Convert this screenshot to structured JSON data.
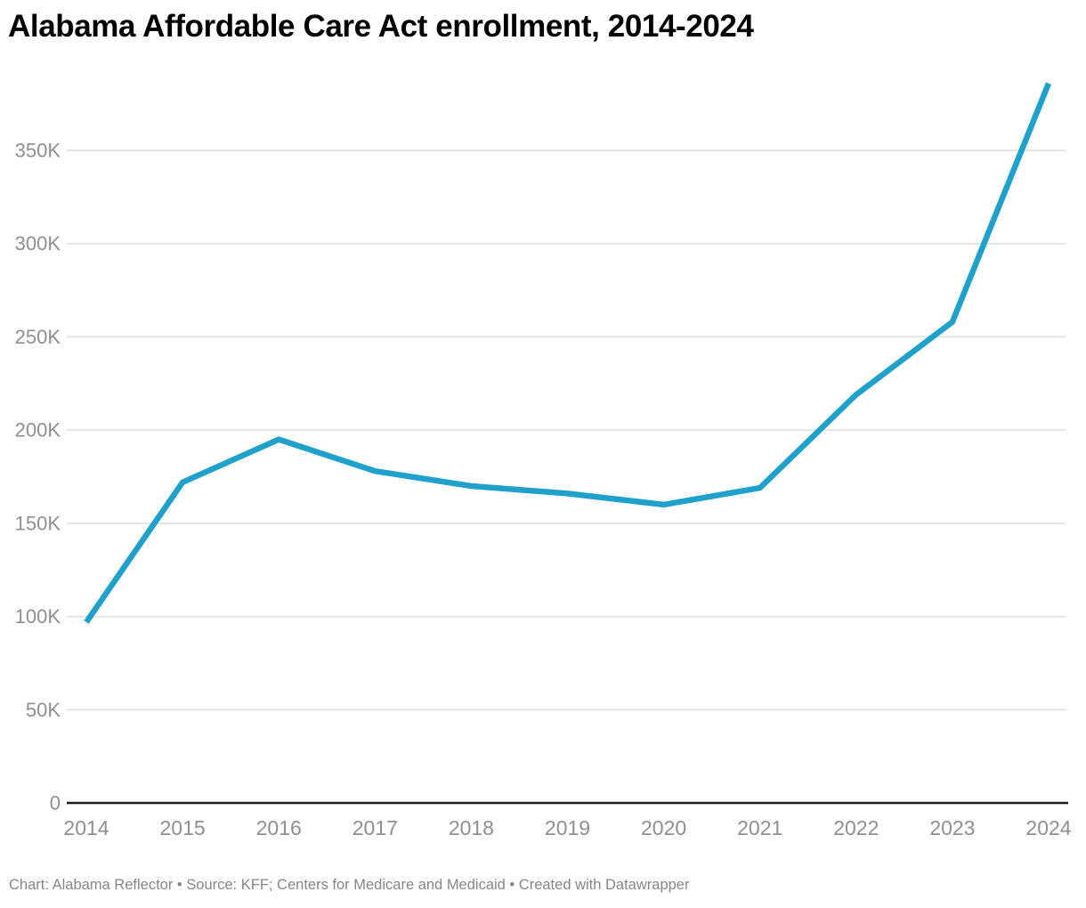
{
  "header": {
    "title": "Alabama Affordable Care Act enrollment, 2014-2024"
  },
  "footer": {
    "text": "Chart: Alabama Reflector • Source: KFF; Centers for Medicare and Medicaid • Created with Datawrapper"
  },
  "chart_data": {
    "type": "line",
    "title": "Alabama Affordable Care Act enrollment, 2014-2024",
    "categories": [
      "2014",
      "2015",
      "2016",
      "2017",
      "2018",
      "2019",
      "2020",
      "2021",
      "2022",
      "2023",
      "2024"
    ],
    "values": [
      97000,
      172000,
      195000,
      178000,
      170000,
      166000,
      160000,
      169000,
      219000,
      258000,
      386000
    ],
    "xlabel": "",
    "ylabel": "",
    "ylim": [
      0,
      390000
    ],
    "yticks": [
      0,
      50000,
      100000,
      150000,
      200000,
      250000,
      300000,
      350000
    ],
    "ytick_labels": [
      "0",
      "50K",
      "100K",
      "150K",
      "200K",
      "250K",
      "300K",
      "350K"
    ],
    "grid": "horizontal",
    "legend": "none",
    "colors": {
      "line": "#1fa1cb",
      "axis": "#1a1a1a",
      "gridline": "#e4e4e4",
      "tick_label": "#8f8f8f",
      "title": "#000000",
      "footer": "#868686",
      "background": "#ffffff"
    }
  }
}
